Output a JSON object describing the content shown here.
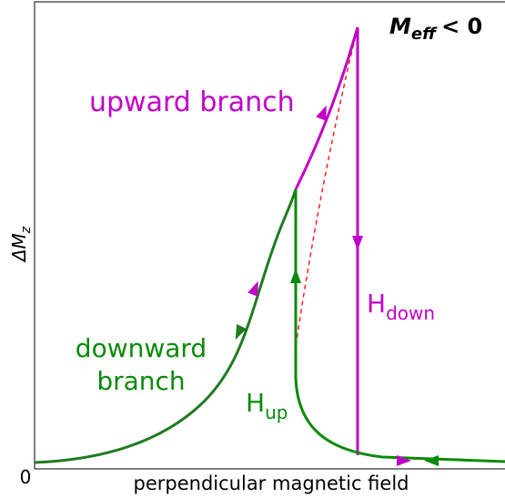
{
  "annotations": {
    "regime": {
      "symbol": "M",
      "subscript": "eff",
      "relation": "< 0"
    },
    "upward_branch": "upward branch",
    "downward_branch": [
      "downward",
      "branch"
    ],
    "h_down": {
      "symbol": "H",
      "subscript": "down"
    },
    "h_up": {
      "symbol": "H",
      "subscript": "up"
    }
  },
  "axes": {
    "y_label": {
      "symbol": "ΔM",
      "subscript": "z"
    },
    "x_label": "perpendicular magnetic field",
    "origin": "0"
  }
}
